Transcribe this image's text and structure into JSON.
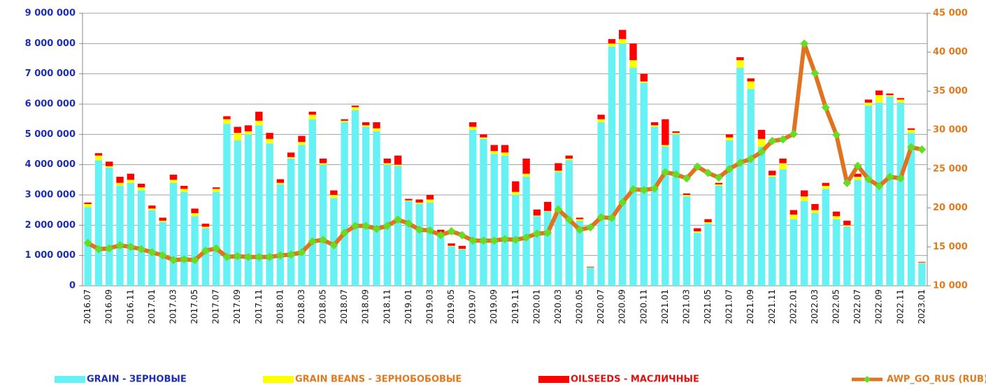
{
  "chart_data": {
    "type": "bar",
    "stacked": true,
    "categories": [
      "2016.07",
      null,
      "2016.09",
      null,
      "2016.11",
      null,
      "2017.01",
      null,
      "2017.03",
      null,
      "2017.05",
      null,
      "2017.07",
      null,
      "2017.09",
      null,
      "2017.11",
      null,
      "2018.01",
      null,
      "2018.03",
      null,
      "2018.05",
      null,
      "2018.07",
      null,
      "2018.09",
      null,
      "2018.11",
      null,
      "2019.01",
      null,
      "2019.03",
      null,
      "2019.05",
      null,
      "2019.07",
      null,
      "2019.09",
      null,
      "2019.11",
      null,
      "2020.01",
      null,
      "2020.03",
      null,
      "2020.05",
      null,
      "2020.07",
      null,
      "2020.09",
      null,
      "2020.11",
      null,
      "2021.01",
      null,
      "2021.03",
      null,
      "2021.05",
      null,
      "2021.07",
      null,
      "2021.09",
      null,
      "2021.11",
      null,
      "2022.01",
      null,
      "2022.03",
      null,
      "2022.05",
      null,
      "2022.07",
      null,
      "2022.09",
      null,
      "2022.11",
      null,
      "2023.01"
    ],
    "series": [
      {
        "name": "GRAIN  - ЗЕРНОВЫЕ",
        "color": "#66f2f4",
        "values": [
          2600000,
          4150000,
          3900000,
          3300000,
          3400000,
          3150000,
          2500000,
          2100000,
          3400000,
          3100000,
          2300000,
          1900000,
          3100000,
          5350000,
          4800000,
          5000000,
          5300000,
          4700000,
          3350000,
          4200000,
          4650000,
          5500000,
          4000000,
          2900000,
          5400000,
          5800000,
          5250000,
          5100000,
          4000000,
          3950000,
          2800000,
          2700000,
          2750000,
          1700000,
          1300000,
          1200000,
          5150000,
          4850000,
          4350000,
          4300000,
          3000000,
          3600000,
          2300000,
          2450000,
          3750000,
          4150000,
          2150000,
          600000,
          5400000,
          7900000,
          8000000,
          7200000,
          6700000,
          5250000,
          4600000,
          5000000,
          2950000,
          1750000,
          2050000,
          3300000,
          4800000,
          7200000,
          6500000,
          4600000,
          3600000,
          3850000,
          2200000,
          2800000,
          2400000,
          3200000,
          2200000,
          1950000,
          3500000,
          5950000,
          6050000,
          6250000,
          6050000,
          5050000,
          750000
        ]
      },
      {
        "name": "GRAIN BEANS - ЗЕРНОБОБОВЫЕ",
        "color": "#ffff00",
        "values": [
          100000,
          150000,
          50000,
          100000,
          100000,
          100000,
          50000,
          50000,
          100000,
          100000,
          100000,
          50000,
          100000,
          150000,
          250000,
          100000,
          150000,
          150000,
          50000,
          50000,
          100000,
          150000,
          50000,
          100000,
          50000,
          100000,
          50000,
          100000,
          50000,
          50000,
          20000,
          50000,
          100000,
          50000,
          20000,
          20000,
          100000,
          50000,
          100000,
          100000,
          100000,
          100000,
          20000,
          20000,
          50000,
          50000,
          50000,
          10000,
          100000,
          100000,
          150000,
          250000,
          50000,
          50000,
          50000,
          50000,
          50000,
          50000,
          50000,
          50000,
          100000,
          250000,
          250000,
          250000,
          50000,
          200000,
          150000,
          150000,
          100000,
          100000,
          100000,
          50000,
          100000,
          100000,
          250000,
          50000,
          100000,
          100000,
          20000
        ]
      },
      {
        "name": "OILSEEDS - МАСЛИЧНЫЕ",
        "color": "#ff0000",
        "values": [
          50000,
          80000,
          150000,
          200000,
          200000,
          120000,
          100000,
          100000,
          170000,
          100000,
          150000,
          100000,
          50000,
          100000,
          200000,
          200000,
          300000,
          200000,
          120000,
          150000,
          200000,
          100000,
          150000,
          150000,
          50000,
          50000,
          100000,
          200000,
          150000,
          300000,
          50000,
          100000,
          150000,
          100000,
          80000,
          100000,
          150000,
          100000,
          200000,
          250000,
          350000,
          500000,
          200000,
          300000,
          250000,
          100000,
          50000,
          20000,
          150000,
          150000,
          300000,
          550000,
          250000,
          100000,
          850000,
          50000,
          50000,
          100000,
          100000,
          50000,
          100000,
          100000,
          100000,
          300000,
          150000,
          150000,
          150000,
          200000,
          200000,
          100000,
          150000,
          150000,
          100000,
          100000,
          150000,
          50000,
          50000,
          50000,
          20000
        ]
      },
      {
        "name": "AWP_GO_RUS (RUB)",
        "type": "line",
        "axis": "y2",
        "color": "#e0731f",
        "marker_color": "#66dd22",
        "values": [
          15500,
          14700,
          14800,
          15200,
          15000,
          14700,
          14300,
          13900,
          13300,
          13400,
          13300,
          14500,
          14800,
          13700,
          13800,
          13700,
          13700,
          13700,
          13900,
          14000,
          14300,
          15700,
          15900,
          15200,
          16800,
          17700,
          17700,
          17300,
          17700,
          18500,
          18000,
          17200,
          17100,
          16500,
          17000,
          16500,
          15800,
          15800,
          15800,
          16000,
          15900,
          16200,
          16700,
          16800,
          19800,
          18500,
          17200,
          17500,
          18800,
          18700,
          20700,
          22400,
          22300,
          22500,
          24600,
          24300,
          23800,
          25300,
          24500,
          23900,
          25000,
          25800,
          26300,
          27200,
          28600,
          28800,
          29500,
          41100,
          37300,
          32900,
          29400,
          23200,
          25400,
          23700,
          22800,
          24000,
          23800,
          27800,
          27500
        ]
      }
    ],
    "ylim": [
      0,
      9000000
    ],
    "yticks": [
      0,
      {
        "value": 1000000,
        "label": "1 000 000"
      },
      {
        "value": 2000000,
        "label": "2 000 000"
      },
      {
        "value": 3000000,
        "label": "3 000 000"
      },
      {
        "value": 4000000,
        "label": "4 000 000"
      },
      {
        "value": 5000000,
        "label": "5 000 000"
      },
      {
        "value": 6000000,
        "label": "6 000 000"
      },
      {
        "value": 7000000,
        "label": "7 000 000"
      },
      {
        "value": 8000000,
        "label": "8 000 000"
      },
      {
        "value": 9000000,
        "label": "9 000 000"
      }
    ],
    "y2lim": [
      10000,
      45000
    ],
    "y2ticks": [
      {
        "value": 10000,
        "label": "10 000"
      },
      {
        "value": 15000,
        "label": "15 000"
      },
      {
        "value": 20000,
        "label": "20 000"
      },
      {
        "value": 25000,
        "label": "25 000"
      },
      {
        "value": 30000,
        "label": "30 000"
      },
      {
        "value": 35000,
        "label": "35 000"
      },
      {
        "value": 40000,
        "label": "40 000"
      },
      {
        "value": 45000,
        "label": "45 000"
      }
    ],
    "grid": true,
    "legend": "bottom"
  }
}
